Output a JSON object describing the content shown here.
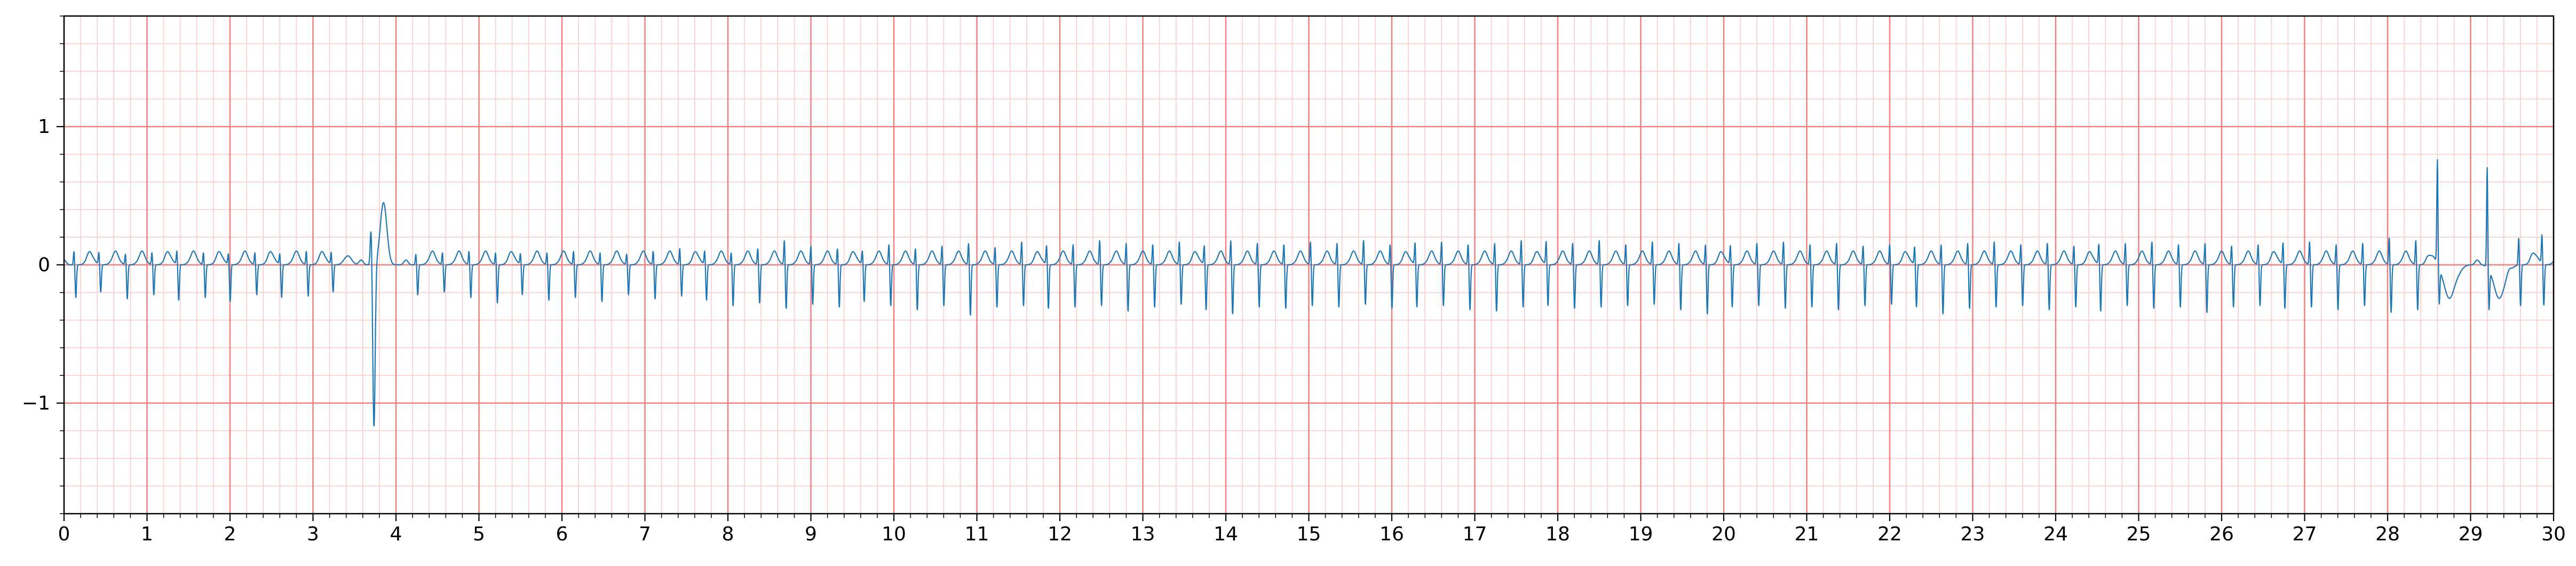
{
  "chart_data": {
    "type": "line",
    "title": "",
    "xlabel": "",
    "ylabel": "",
    "xlim": [
      0,
      30
    ],
    "ylim": [
      -1.8,
      1.8
    ],
    "x_ticks": [
      "0",
      "1",
      "2",
      "3",
      "4",
      "5",
      "6",
      "7",
      "8",
      "9",
      "10",
      "11",
      "12",
      "13",
      "14",
      "15",
      "16",
      "17",
      "18",
      "19",
      "20",
      "21",
      "22",
      "23",
      "24",
      "25",
      "26",
      "27",
      "28",
      "29",
      "30"
    ],
    "y_ticks": [
      {
        "value": 1,
        "label": "1"
      },
      {
        "value": 0,
        "label": "0"
      },
      {
        "value": -1,
        "label": "−1"
      }
    ],
    "grid": true,
    "major_grid_step": {
      "x": 1,
      "y": 1
    },
    "minor_grid_step": {
      "x": 0.2,
      "y": 0.2
    },
    "grid_major_color": "#f08080",
    "grid_minor_color": "#ffc8c8",
    "line_color": "#1f77b4",
    "series": [
      {
        "beats": [
          0.12,
          0.42,
          0.74,
          1.06,
          1.36,
          1.68,
          1.98,
          2.3,
          2.6,
          2.92,
          3.22,
          3.7,
          4.24,
          4.56,
          4.88,
          5.2,
          5.5,
          5.82,
          6.14,
          6.46,
          6.78,
          7.1,
          7.42,
          7.72,
          8.04,
          8.36,
          8.68,
          9.0,
          9.32,
          9.62,
          9.94,
          10.26,
          10.58,
          10.9,
          11.22,
          11.54,
          11.84,
          12.16,
          12.48,
          12.8,
          13.12,
          13.44,
          13.74,
          14.06,
          14.38,
          14.7,
          15.02,
          15.34,
          15.66,
          15.98,
          16.28,
          16.6,
          16.92,
          17.24,
          17.56,
          17.86,
          18.18,
          18.5,
          18.82,
          19.14,
          19.46,
          19.78,
          20.08,
          20.4,
          20.72,
          21.04,
          21.36,
          21.68,
          22.0,
          22.3,
          22.62,
          22.94,
          23.26,
          23.58,
          23.9,
          24.22,
          24.52,
          24.84,
          25.16,
          25.48,
          25.8,
          26.12,
          26.44,
          26.74,
          27.06,
          27.38,
          27.7,
          28.02,
          28.34,
          28.6,
          29.2,
          29.58,
          29.86
        ],
        "r_amp": [
          0.1,
          0.09,
          0.08,
          0.09,
          0.1,
          0.09,
          0.08,
          0.09,
          0.08,
          0.1,
          0.09,
          0.28,
          0.08,
          0.09,
          0.1,
          0.09,
          0.08,
          0.09,
          0.1,
          0.09,
          0.08,
          0.1,
          0.12,
          0.1,
          0.09,
          0.12,
          0.18,
          0.14,
          0.12,
          0.1,
          0.15,
          0.12,
          0.14,
          0.16,
          0.13,
          0.17,
          0.14,
          0.15,
          0.18,
          0.16,
          0.15,
          0.17,
          0.14,
          0.18,
          0.16,
          0.15,
          0.17,
          0.16,
          0.18,
          0.15,
          0.16,
          0.17,
          0.15,
          0.16,
          0.18,
          0.17,
          0.16,
          0.18,
          0.15,
          0.17,
          0.16,
          0.15,
          0.14,
          0.16,
          0.17,
          0.15,
          0.16,
          0.14,
          0.15,
          0.13,
          0.15,
          0.16,
          0.17,
          0.15,
          0.16,
          0.14,
          0.15,
          0.16,
          0.17,
          0.15,
          0.16,
          0.14,
          0.15,
          0.16,
          0.17,
          0.15,
          0.16,
          0.2,
          0.18,
          0.76,
          0.73,
          0.2,
          0.21
        ],
        "s_amp": [
          -0.24,
          -0.2,
          -0.25,
          -0.22,
          -0.26,
          -0.24,
          -0.27,
          -0.22,
          -0.24,
          -0.23,
          -0.2,
          -1.18,
          -0.22,
          -0.2,
          -0.24,
          -0.28,
          -0.22,
          -0.26,
          -0.24,
          -0.27,
          -0.22,
          -0.25,
          -0.23,
          -0.26,
          -0.3,
          -0.28,
          -0.32,
          -0.29,
          -0.31,
          -0.27,
          -0.3,
          -0.33,
          -0.3,
          -0.37,
          -0.31,
          -0.3,
          -0.32,
          -0.31,
          -0.3,
          -0.34,
          -0.31,
          -0.29,
          -0.33,
          -0.36,
          -0.31,
          -0.32,
          -0.3,
          -0.31,
          -0.29,
          -0.32,
          -0.31,
          -0.3,
          -0.33,
          -0.34,
          -0.31,
          -0.3,
          -0.32,
          -0.31,
          -0.3,
          -0.29,
          -0.33,
          -0.36,
          -0.31,
          -0.3,
          -0.32,
          -0.31,
          -0.33,
          -0.3,
          -0.29,
          -0.31,
          -0.36,
          -0.32,
          -0.31,
          -0.3,
          -0.33,
          -0.31,
          -0.34,
          -0.3,
          -0.32,
          -0.31,
          -0.35,
          -0.31,
          -0.3,
          -0.32,
          -0.31,
          -0.33,
          -0.3,
          -0.35,
          -0.33,
          -0.26,
          -0.29,
          -0.3,
          -0.3
        ]
      }
    ]
  }
}
